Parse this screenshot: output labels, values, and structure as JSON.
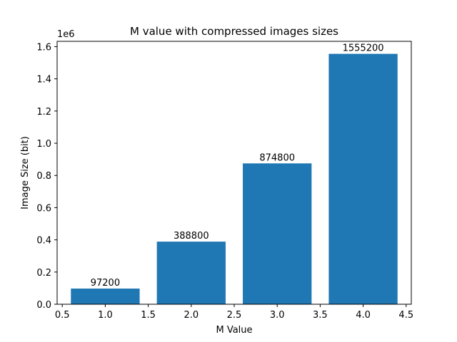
{
  "chart_data": {
    "type": "bar",
    "title": "M value with compressed images sizes",
    "xlabel": "M Value",
    "ylabel": "Image Size (bit)",
    "y_offset_label": "1e6",
    "x": [
      1,
      2,
      3,
      4
    ],
    "values": [
      97200,
      388800,
      874800,
      1555200
    ],
    "bar_labels": [
      "97200",
      "388800",
      "874800",
      "1555200"
    ],
    "bar_color": "#1f77b4",
    "bar_width": 0.8,
    "xlim": [
      0.44,
      4.56
    ],
    "ylim": [
      0,
      1632960
    ],
    "x_ticks": [
      0.5,
      1.0,
      1.5,
      2.0,
      2.5,
      3.0,
      3.5,
      4.0,
      4.5
    ],
    "x_tick_labels": [
      "0.5",
      "1.0",
      "1.5",
      "2.0",
      "2.5",
      "3.0",
      "3.5",
      "4.0",
      "4.5"
    ],
    "y_ticks": [
      0,
      200000,
      400000,
      600000,
      800000,
      1000000,
      1200000,
      1400000,
      1600000
    ],
    "y_tick_labels": [
      "0.0",
      "0.2",
      "0.4",
      "0.6",
      "0.8",
      "1.0",
      "1.2",
      "1.4",
      "1.6"
    ],
    "grid": false,
    "legend": "none"
  }
}
